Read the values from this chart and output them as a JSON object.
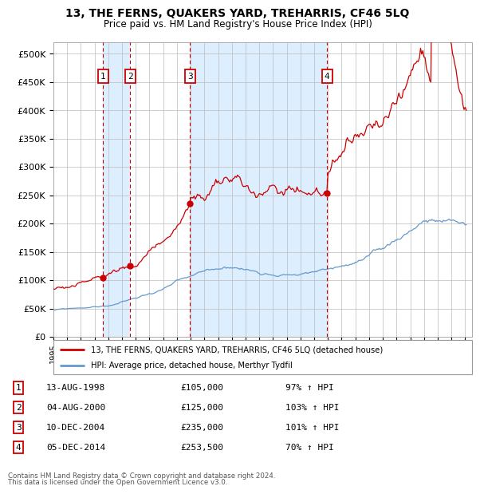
{
  "title": "13, THE FERNS, QUAKERS YARD, TREHARRIS, CF46 5LQ",
  "subtitle": "Price paid vs. HM Land Registry's House Price Index (HPI)",
  "house_label": "13, THE FERNS, QUAKERS YARD, TREHARRIS, CF46 5LQ (detached house)",
  "hpi_label": "HPI: Average price, detached house, Merthyr Tydfil",
  "house_color": "#cc0000",
  "hpi_color": "#6699cc",
  "shade_color": "#ddeeff",
  "ylim": [
    0,
    520000
  ],
  "yticks": [
    0,
    50000,
    100000,
    150000,
    200000,
    250000,
    300000,
    350000,
    400000,
    450000,
    500000
  ],
  "xlim_start": 1995,
  "xlim_end": 2025.5,
  "transactions": [
    {
      "num": 1,
      "date": "13-AUG-1998",
      "price": 105000,
      "pct": "97%",
      "dir": "↑",
      "x_year": 1998.61
    },
    {
      "num": 2,
      "date": "04-AUG-2000",
      "price": 125000,
      "pct": "103%",
      "dir": "↑",
      "x_year": 2000.59
    },
    {
      "num": 3,
      "date": "10-DEC-2004",
      "price": 235000,
      "pct": "101%",
      "dir": "↑",
      "x_year": 2004.94
    },
    {
      "num": 4,
      "date": "05-DEC-2014",
      "price": 253500,
      "pct": "70%",
      "dir": "↑",
      "x_year": 2014.93
    }
  ],
  "footer_line1": "Contains HM Land Registry data © Crown copyright and database right 2024.",
  "footer_line2": "This data is licensed under the Open Government Licence v3.0."
}
